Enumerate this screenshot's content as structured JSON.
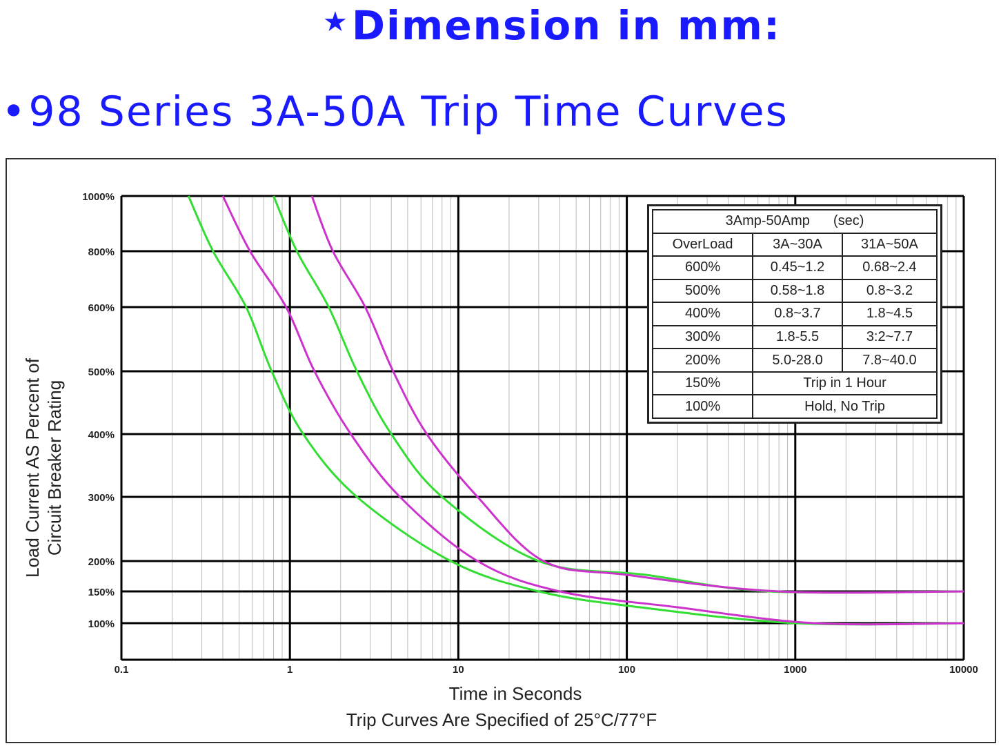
{
  "header": {
    "star": "★",
    "title": "Dimension in mm:",
    "bullet": "•",
    "subtitle": "98 Series 3A-50A Trip Time Curves"
  },
  "chart_data": {
    "type": "line",
    "title": "",
    "xlabel": "Time in Seconds",
    "footnote": "Trip Curves Are Specified of 25°C/77°F",
    "ylabel_lines": [
      "Load Current AS Percent of",
      "Circuit Breaker Rating"
    ],
    "x_scale": "log",
    "xlim": [
      0.1,
      10000
    ],
    "x_ticks": [
      "0.1",
      "1",
      "10",
      "100",
      "1000",
      "10000"
    ],
    "y_ticks": [
      "1000%",
      "800%",
      "600%",
      "500%",
      "400%",
      "300%",
      "200%",
      "150%",
      "100%"
    ],
    "grid": true,
    "colors": {
      "green": "#33dd33",
      "magenta": "#cc33cc",
      "grid": "#000000",
      "minor_grid": "#bbbbbb"
    },
    "series": [
      {
        "color": "green",
        "points": [
          [
            0.25,
            "1000%"
          ],
          [
            0.35,
            "800%"
          ],
          [
            0.55,
            "600%"
          ],
          [
            0.78,
            "500%"
          ],
          [
            1.2,
            "400%"
          ],
          [
            2.5,
            "300%"
          ],
          [
            9,
            "200%"
          ],
          [
            30,
            "150%"
          ],
          [
            120,
            "120%"
          ],
          [
            1000,
            "100%"
          ],
          [
            10000,
            "100%"
          ]
        ]
      },
      {
        "color": "magenta",
        "points": [
          [
            0.4,
            "1000%"
          ],
          [
            0.58,
            "800%"
          ],
          [
            0.95,
            "600%"
          ],
          [
            1.4,
            "500%"
          ],
          [
            2.3,
            "400%"
          ],
          [
            4.5,
            "300%"
          ],
          [
            13,
            "200%"
          ],
          [
            40,
            "150%"
          ],
          [
            200,
            "120%"
          ],
          [
            1300,
            "100%"
          ],
          [
            10000,
            "100%"
          ]
        ]
      },
      {
        "color": "green",
        "points": [
          [
            0.8,
            "1000%"
          ],
          [
            1.1,
            "800%"
          ],
          [
            1.7,
            "600%"
          ],
          [
            2.5,
            "500%"
          ],
          [
            4,
            "400%"
          ],
          [
            8,
            "300%"
          ],
          [
            30,
            "200%"
          ],
          [
            130,
            "180%"
          ],
          [
            700,
            "150%"
          ],
          [
            10000,
            "150%"
          ]
        ]
      },
      {
        "color": "magenta",
        "points": [
          [
            1.35,
            "1000%"
          ],
          [
            1.8,
            "800%"
          ],
          [
            2.8,
            "600%"
          ],
          [
            4.1,
            "500%"
          ],
          [
            6.5,
            "400%"
          ],
          [
            13,
            "300%"
          ],
          [
            32,
            "200%"
          ],
          [
            100,
            "180%"
          ],
          [
            800,
            "150%"
          ],
          [
            10000,
            "150%"
          ]
        ]
      }
    ]
  },
  "spec_table": {
    "title": "3Amp-50Amp",
    "unit": "(sec)",
    "headers": [
      "OverLoad",
      "3A~30A",
      "31A~50A"
    ],
    "rows": [
      [
        "600%",
        "0.45~1.2",
        "0.68~2.4"
      ],
      [
        "500%",
        "0.58~1.8",
        "0.8~3.2"
      ],
      [
        "400%",
        "0.8~3.7",
        "1.8~4.5"
      ],
      [
        "300%",
        "1.8-5.5",
        "3:2~7.7"
      ],
      [
        "200%",
        "5.0-28.0",
        "7.8~40.0"
      ]
    ],
    "merged_rows": [
      [
        "150%",
        "Trip in 1 Hour"
      ],
      [
        "100%",
        "Hold, No Trip"
      ]
    ]
  }
}
